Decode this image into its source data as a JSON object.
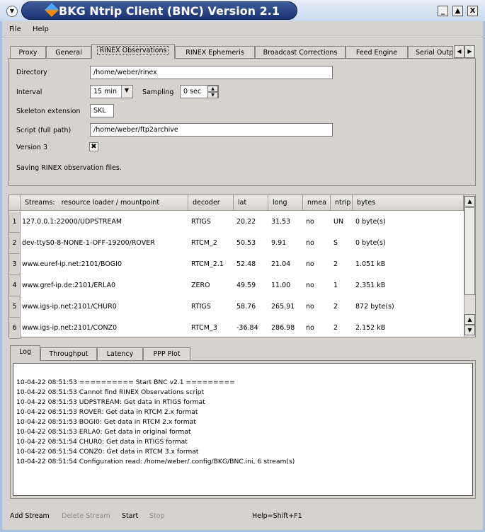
{
  "window": {
    "title": "BKG Ntrip Client (BNC) Version 2.1",
    "minimize": "_",
    "maximize": "▲",
    "close": "X",
    "sysmenu": "▼"
  },
  "menu": {
    "file": "File",
    "help": "Help"
  },
  "tabs": [
    "Proxy",
    "General",
    "RINEX Observations",
    "RINEX Ephemeris",
    "Broadcast Corrections",
    "Feed Engine",
    "Serial Outp"
  ],
  "active_tab": "RINEX Observations",
  "form": {
    "directory_label": "Directory",
    "directory_value": "/home/weber/rinex",
    "interval_label": "Interval",
    "interval_value": "15 min",
    "sampling_label": "Sampling",
    "sampling_value": "0 sec",
    "skeleton_label": "Skeleton extension",
    "skeleton_value": "SKL",
    "script_label": "Script (full path)",
    "script_value": "/home/weber/ftp2archive",
    "version3_label": "Version 3",
    "version3_checked": true,
    "version3_mark": "✖",
    "description": "Saving RINEX observation files."
  },
  "streams": {
    "headers": [
      "Streams:   resource loader / mountpoint",
      "decoder",
      "lat",
      "long",
      "nmea",
      "ntrip",
      "bytes"
    ],
    "rows": [
      {
        "n": "1",
        "stream": "127.0.0.1:22000/UDPSTREAM",
        "decoder": "RTIGS",
        "lat": "20.22",
        "long": "31.53",
        "nmea": "no",
        "ntrip": "UN",
        "bytes": "0 byte(s)"
      },
      {
        "n": "2",
        "stream": "dev-ttyS0-8-NONE-1-OFF-19200/ROVER",
        "decoder": "RTCM_2",
        "lat": "50.53",
        "long": "9.91",
        "nmea": "no",
        "ntrip": "S",
        "bytes": "0 byte(s)"
      },
      {
        "n": "3",
        "stream": "www.euref-ip.net:2101/BOGI0",
        "decoder": "RTCM_2.1",
        "lat": "52.48",
        "long": "21.04",
        "nmea": "no",
        "ntrip": "2",
        "bytes": "1.051 kB"
      },
      {
        "n": "4",
        "stream": "www.gref-ip.de:2101/ERLA0",
        "decoder": "ZERO",
        "lat": "49.59",
        "long": "11.00",
        "nmea": "no",
        "ntrip": "1",
        "bytes": "2.351 kB"
      },
      {
        "n": "5",
        "stream": "www.igs-ip.net:2101/CHUR0",
        "decoder": "RTIGS",
        "lat": "58.76",
        "long": "265.91",
        "nmea": "no",
        "ntrip": "2",
        "bytes": "872 byte(s)"
      },
      {
        "n": "6",
        "stream": "www.igs-ip.net:2101/CONZ0",
        "decoder": "RTCM_3",
        "lat": "-36.84",
        "long": "286.98",
        "nmea": "no",
        "ntrip": "2",
        "bytes": "2.152 kB"
      }
    ]
  },
  "log_tabs": [
    "Log",
    "Throughput",
    "Latency",
    "PPP Plot"
  ],
  "log": [
    "10-04-22 08:51:53 ========== Start BNC v2.1 =========",
    "10-04-22 08:51:53 Cannot find RINEX Observations script",
    "10-04-22 08:51:53 UDPSTREAM: Get data in RTIGS format",
    "10-04-22 08:51:53 ROVER: Get data in RTCM 2.x format",
    "10-04-22 08:51:53 BOGI0: Get data in RTCM 2.x format",
    "10-04-22 08:51:53 ERLA0: Get data in original format",
    "10-04-22 08:51:54 CHUR0: Get data in RTIGS format",
    "10-04-22 08:51:54 CONZ0: Get data in RTCM 3.x format",
    "10-04-22 08:51:54 Configuration read: /home/weber/.config/BKG/BNC.ini, 6 stream(s)"
  ],
  "buttons": {
    "add": "Add Stream",
    "delete": "Delete Stream",
    "start": "Start",
    "stop": "Stop",
    "help": "Help=Shift+F1"
  }
}
